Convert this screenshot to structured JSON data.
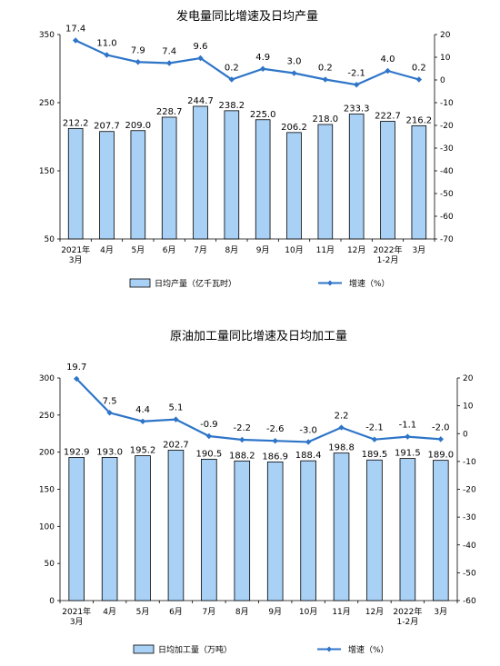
{
  "charts": [
    {
      "type": "bar+line",
      "title": "发电量同比增速及日均产量",
      "categories": [
        [
          "2021年",
          "3月"
        ],
        [
          "4月"
        ],
        [
          "5月"
        ],
        [
          "6月"
        ],
        [
          "7月"
        ],
        [
          "8月"
        ],
        [
          "9月"
        ],
        [
          "10月"
        ],
        [
          "11月"
        ],
        [
          "12月"
        ],
        [
          "2022年",
          "1-2月"
        ],
        [
          "3月"
        ]
      ],
      "bar_series": {
        "name": "日均产量（亿千瓦时）",
        "values": [
          212.2,
          207.7,
          209.0,
          228.7,
          244.7,
          238.2,
          225.0,
          206.2,
          218.0,
          233.3,
          222.7,
          216.2
        ],
        "color": "#a9d0f5"
      },
      "line_series": {
        "name": "增速（%）",
        "values": [
          17.4,
          11.0,
          7.9,
          7.4,
          9.6,
          0.2,
          4.9,
          3.0,
          0.2,
          -2.1,
          4.0,
          0.2
        ],
        "color": "#2e75c8"
      },
      "left_axis": {
        "min": 50,
        "max": 350,
        "ticks": [
          50,
          150,
          250,
          350
        ]
      },
      "right_axis": {
        "min": -70,
        "max": 20,
        "ticks": [
          20,
          10,
          0,
          -10,
          -20,
          -30,
          -40,
          -50,
          -60,
          -70
        ]
      },
      "bar_labels": [
        "212.2",
        "207.7",
        "209.0",
        "228.7",
        "244.7",
        "238.2",
        "225.0",
        "206.2",
        "218.0",
        "233.3",
        "222.7",
        "216.2"
      ],
      "line_labels": [
        "17.4",
        "11.0",
        "7.9",
        "7.4",
        "9.6",
        "0.2",
        "4.9",
        "3.0",
        "0.2",
        "-2.1",
        "4.0",
        "0.2"
      ]
    },
    {
      "type": "bar+line",
      "title": "原油加工量同比增速及日均加工量",
      "categories": [
        [
          "2021年",
          "3月"
        ],
        [
          "4月"
        ],
        [
          "5月"
        ],
        [
          "6月"
        ],
        [
          "7月"
        ],
        [
          "8月"
        ],
        [
          "9月"
        ],
        [
          "10月"
        ],
        [
          "11月"
        ],
        [
          "12月"
        ],
        [
          "2022年",
          "1-2月"
        ],
        [
          "3月"
        ]
      ],
      "bar_series": {
        "name": "日均加工量（万吨）",
        "values": [
          192.9,
          193.0,
          195.2,
          202.7,
          190.5,
          188.2,
          186.9,
          188.4,
          198.8,
          189.5,
          191.5,
          189.0
        ],
        "color": "#a9d0f5"
      },
      "line_series": {
        "name": "增速（%）",
        "values": [
          19.7,
          7.5,
          4.4,
          5.1,
          -0.9,
          -2.2,
          -2.6,
          -3.0,
          2.2,
          -2.1,
          -1.1,
          -2.0
        ],
        "color": "#2e75c8"
      },
      "left_axis": {
        "min": 0,
        "max": 300,
        "ticks": [
          0,
          50,
          100,
          150,
          200,
          250,
          300
        ]
      },
      "right_axis": {
        "min": -60,
        "max": 20,
        "ticks": [
          20,
          10,
          0,
          -10,
          -20,
          -30,
          -40,
          -50,
          -60
        ]
      },
      "bar_labels": [
        "192.9",
        "193.0",
        "195.2",
        "202.7",
        "190.5",
        "188.2",
        "186.9",
        "188.4",
        "198.8",
        "189.5",
        "191.5",
        "189.0"
      ],
      "line_labels": [
        "19.7",
        "7.5",
        "4.4",
        "5.1",
        "-0.9",
        "-2.2",
        "-2.6",
        "-3.0",
        "2.2",
        "-2.1",
        "-1.1",
        "-2.0"
      ]
    }
  ]
}
